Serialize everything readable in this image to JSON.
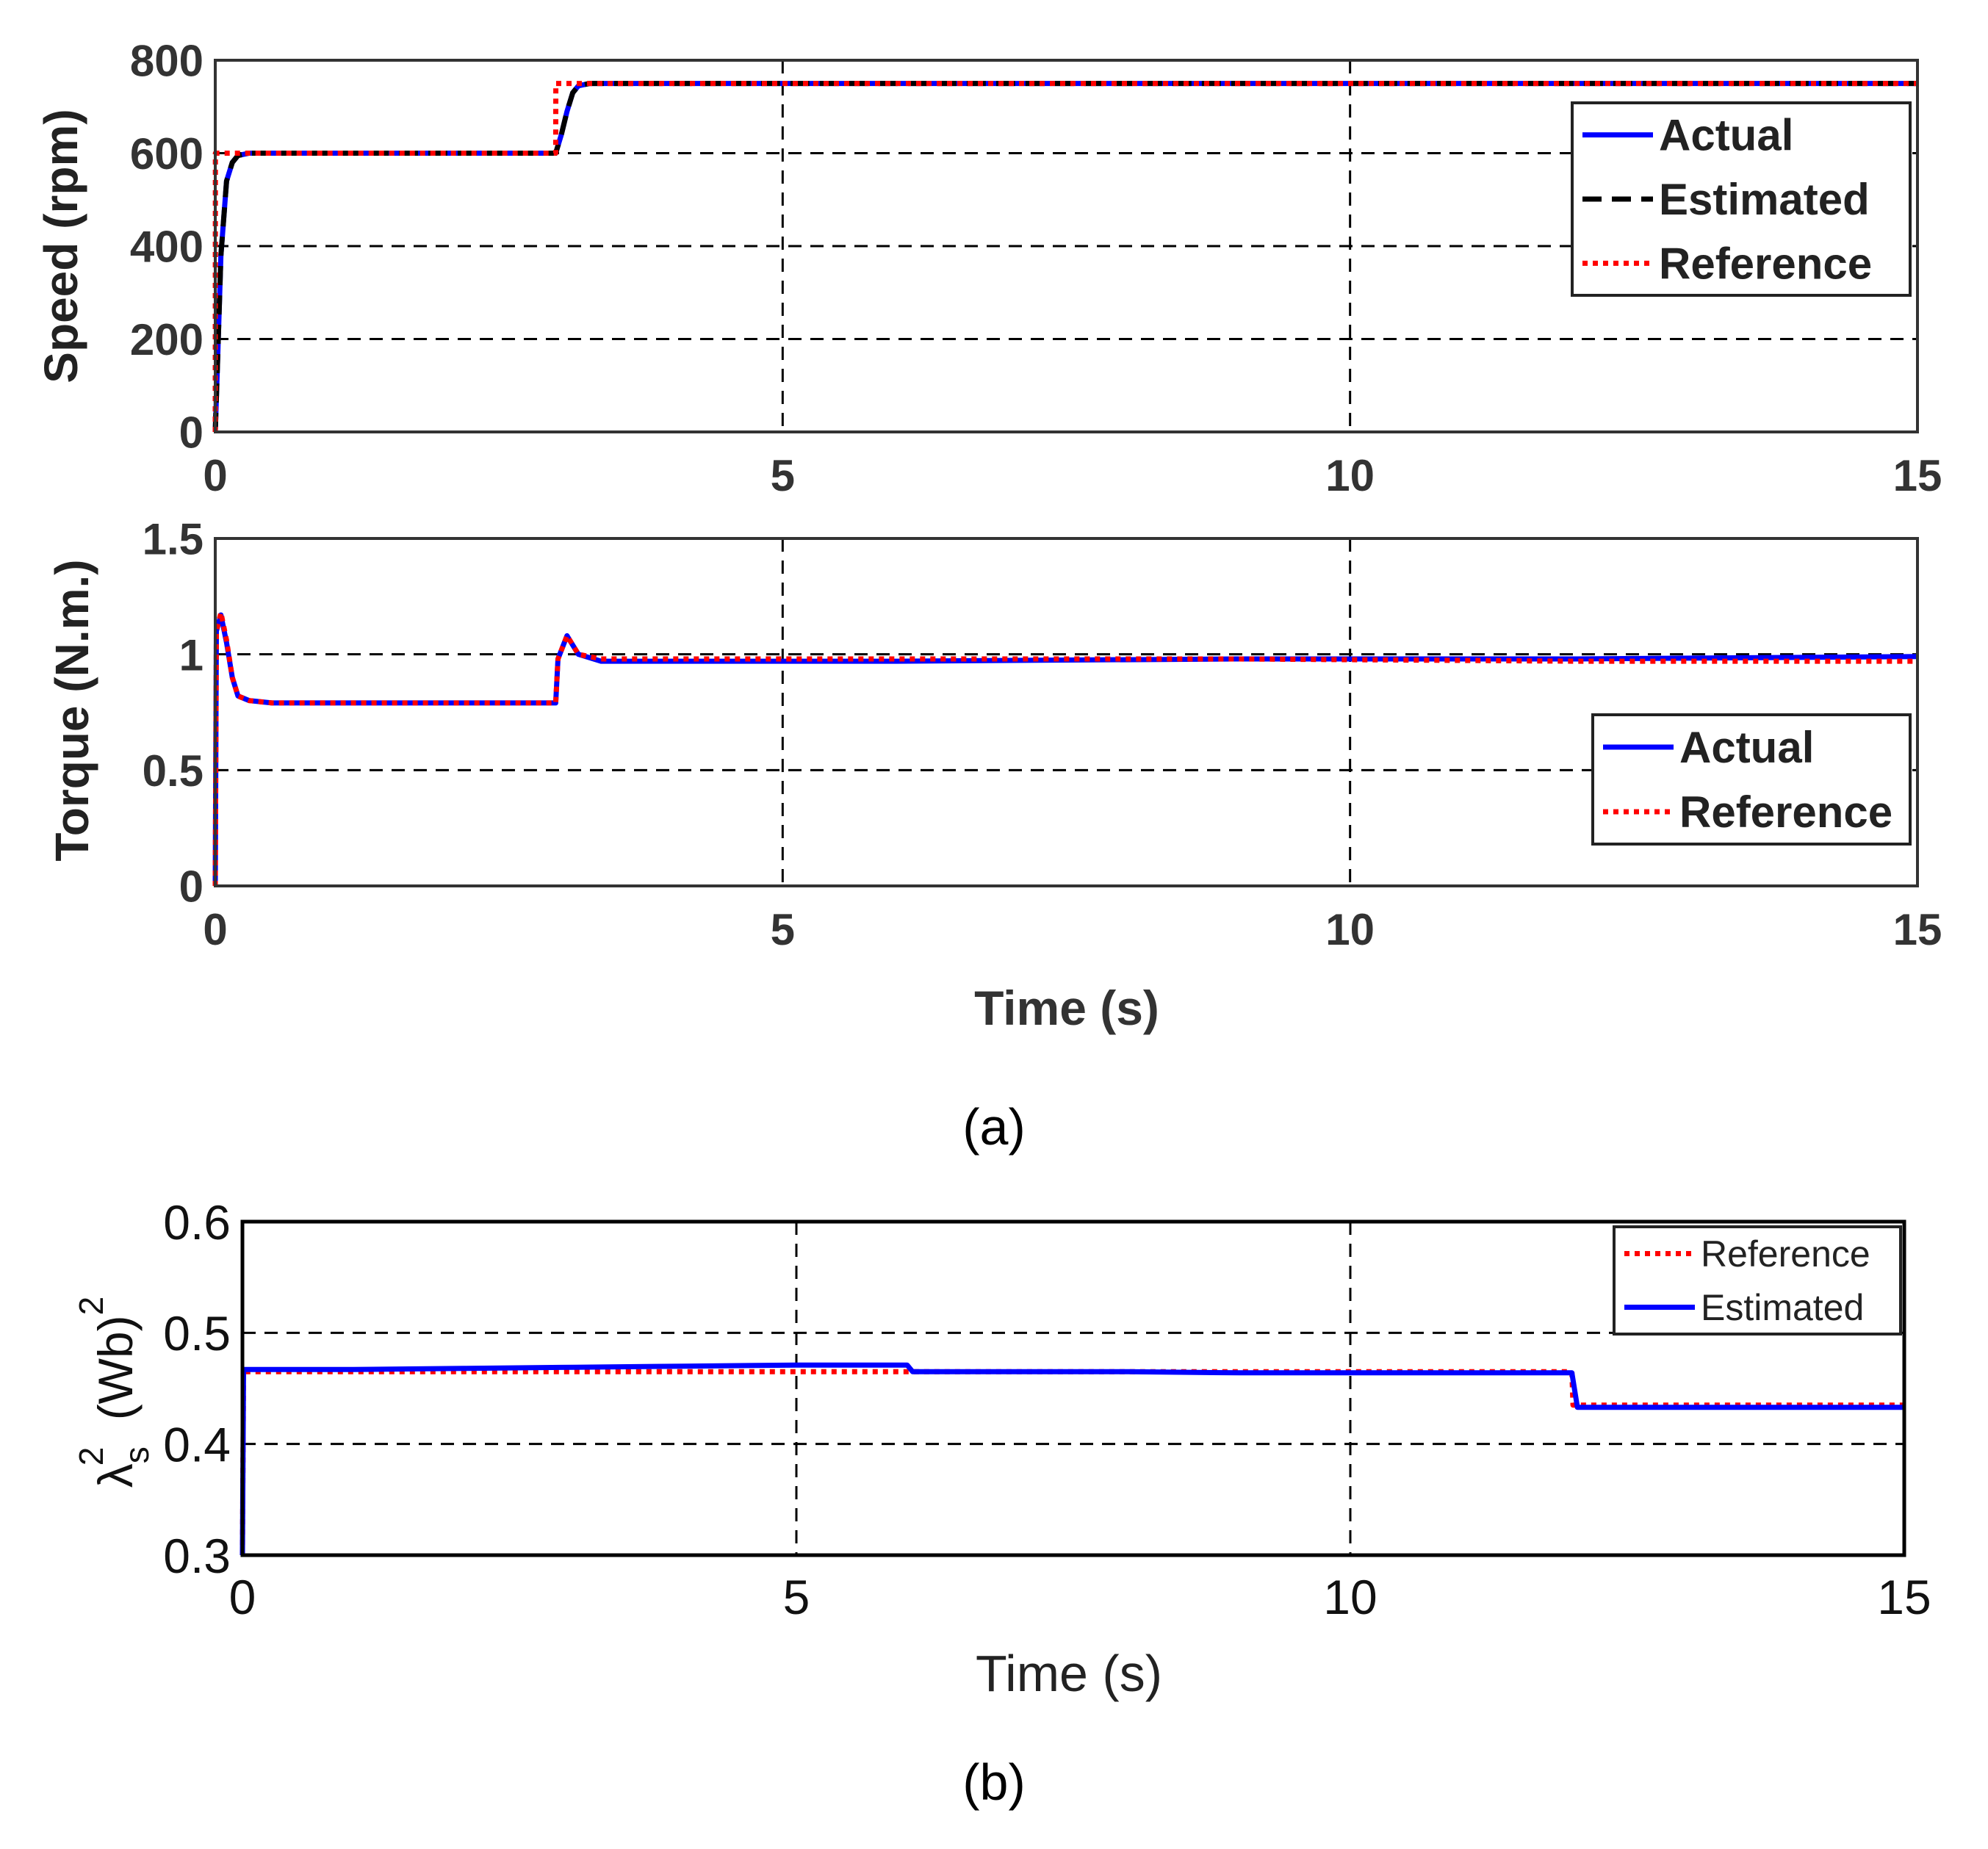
{
  "chart_data": [
    {
      "type": "line",
      "panel": "(a) top",
      "title": "",
      "xlabel": "",
      "ylabel": "Speed (rpm)",
      "xlim": [
        0,
        15
      ],
      "ylim": [
        0,
        800
      ],
      "xticks": [
        0,
        5,
        10,
        15
      ],
      "xtick_labels": [
        "0",
        "5",
        "10",
        "15"
      ],
      "yticks": [
        0,
        200,
        400,
        600,
        800
      ],
      "ytick_labels": [
        "0",
        "200",
        "400",
        "600",
        "800"
      ],
      "grid": true,
      "legend_position": "top-right",
      "series": [
        {
          "name": "Actual",
          "style": "solid",
          "color": "#0000ff",
          "x": [
            0,
            0.02,
            0.05,
            0.1,
            0.15,
            0.2,
            0.3,
            3.0,
            3.05,
            3.1,
            3.15,
            3.2,
            3.3,
            6.0,
            9.0,
            12.0,
            15.0
          ],
          "y": [
            0,
            150,
            380,
            540,
            580,
            595,
            600,
            600,
            640,
            690,
            730,
            745,
            750,
            750,
            750,
            750,
            750
          ]
        },
        {
          "name": "Estimated",
          "style": "dashed",
          "color": "#000000",
          "x": [
            0,
            0.02,
            0.05,
            0.1,
            0.15,
            0.2,
            0.3,
            3.0,
            3.05,
            3.1,
            3.15,
            3.2,
            3.3,
            6.0,
            9.0,
            12.0,
            15.0
          ],
          "y": [
            0,
            150,
            380,
            540,
            580,
            595,
            600,
            600,
            640,
            690,
            730,
            745,
            750,
            750,
            750,
            750,
            750
          ]
        },
        {
          "name": "Reference",
          "style": "dotted",
          "color": "#ff0000",
          "x": [
            0,
            0.001,
            3.0,
            3.001,
            15.0
          ],
          "y": [
            0,
            600,
            600,
            750,
            750
          ]
        }
      ]
    },
    {
      "type": "line",
      "panel": "(a) bottom",
      "title": "",
      "xlabel": "Time (s)",
      "ylabel": "Torque (N.m.)",
      "xlim": [
        0,
        15
      ],
      "ylim": [
        0,
        1.5
      ],
      "xticks": [
        0,
        5,
        10,
        15
      ],
      "xtick_labels": [
        "0",
        "5",
        "10",
        "15"
      ],
      "yticks": [
        0,
        0.5,
        1,
        1.5
      ],
      "ytick_labels": [
        "0",
        "0.5",
        "1",
        "1.5"
      ],
      "grid": true,
      "legend_position": "right",
      "series": [
        {
          "name": "Actual",
          "style": "solid",
          "color": "#0000ff",
          "x": [
            0,
            0.01,
            0.05,
            0.1,
            0.15,
            0.2,
            0.3,
            0.5,
            3.0,
            3.02,
            3.1,
            3.2,
            3.4,
            6.0,
            9.0,
            12.0,
            15.0
          ],
          "y": [
            0,
            1.1,
            1.17,
            1.05,
            0.9,
            0.82,
            0.8,
            0.79,
            0.79,
            0.98,
            1.08,
            1.0,
            0.97,
            0.97,
            0.98,
            0.98,
            0.99
          ]
        },
        {
          "name": "Reference",
          "style": "dotted",
          "color": "#ff0000",
          "x": [
            0,
            0.01,
            0.05,
            0.1,
            0.15,
            0.2,
            0.3,
            0.5,
            3.0,
            3.02,
            3.1,
            3.2,
            3.4,
            6.0,
            9.0,
            12.0,
            15.0
          ],
          "y": [
            0,
            1.1,
            1.18,
            1.06,
            0.9,
            0.82,
            0.8,
            0.79,
            0.79,
            0.98,
            1.08,
            1.0,
            0.98,
            0.98,
            0.98,
            0.97,
            0.97
          ]
        }
      ]
    },
    {
      "type": "line",
      "panel": "(b)",
      "title": "",
      "xlabel": "Time (s)",
      "ylabel": "λs2 (Wb)2",
      "xlim": [
        0,
        15
      ],
      "ylim": [
        0.3,
        0.6
      ],
      "xticks": [
        0,
        5,
        10,
        15
      ],
      "xtick_labels": [
        "0",
        "5",
        "10",
        "15"
      ],
      "yticks": [
        0.3,
        0.4,
        0.5,
        0.6
      ],
      "ytick_labels": [
        "0.3",
        "0.4",
        "0.5",
        "0.6"
      ],
      "grid": true,
      "legend_position": "top-right",
      "series": [
        {
          "name": "Reference",
          "style": "dotted",
          "color": "#ff0000",
          "x": [
            0,
            0.01,
            6.0,
            6.01,
            12.0,
            12.01,
            15.0
          ],
          "y": [
            0.3,
            0.465,
            0.465,
            0.465,
            0.465,
            0.435,
            0.435
          ]
        },
        {
          "name": "Estimated",
          "style": "solid",
          "color": "#0000ff",
          "x": [
            0,
            0.01,
            1.0,
            2.0,
            3.0,
            4.0,
            5.0,
            6.0,
            6.05,
            7.0,
            8.0,
            9.0,
            10.0,
            11.0,
            12.0,
            12.05,
            13.0,
            14.0,
            15.0
          ],
          "y": [
            0.3,
            0.467,
            0.467,
            0.468,
            0.469,
            0.47,
            0.471,
            0.471,
            0.465,
            0.465,
            0.465,
            0.464,
            0.464,
            0.464,
            0.464,
            0.433,
            0.433,
            0.433,
            0.433
          ]
        }
      ]
    }
  ],
  "captions": {
    "a": "(a)",
    "b": "(b)"
  },
  "colors": {
    "actual": "#0000ff",
    "estimated": "#000000",
    "reference": "#ff0000",
    "grid": "#000000",
    "frame": "#333333"
  }
}
